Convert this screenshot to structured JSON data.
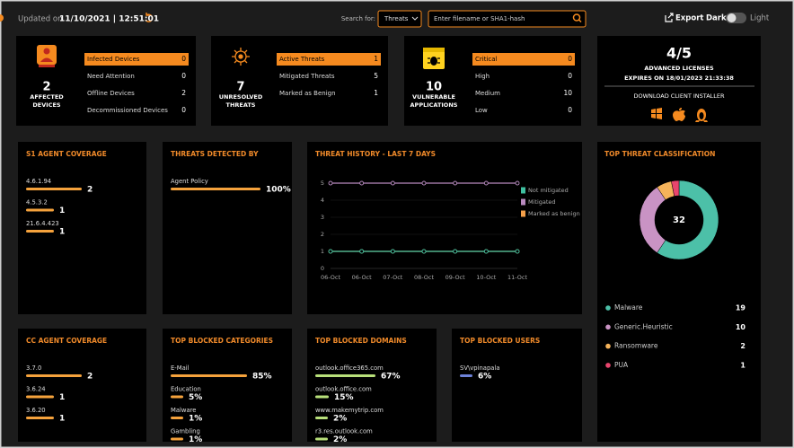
{
  "header": {
    "updated_label": "Updated on",
    "timestamp": "11/10/2021 | 12:51:01",
    "search_label": "Search for:",
    "search_type": "Threats",
    "search_placeholder": "Enter filename or SHA1-hash",
    "export": "Export",
    "dark": "Dark",
    "light": "Light"
  },
  "summary": [
    {
      "count": 2,
      "label": "AFFECTED DEVICES",
      "items": [
        {
          "name": "Infected Devices",
          "value": 0
        },
        {
          "name": "Need Attention",
          "value": 0
        },
        {
          "name": "Offline Devices",
          "value": 2
        },
        {
          "name": "Decommissioned Devices",
          "value": 0
        }
      ]
    },
    {
      "count": 7,
      "label": "UNRESOLVED THREATS",
      "items": [
        {
          "name": "Active Threats",
          "value": 1
        },
        {
          "name": "Mitigated Threats",
          "value": 5
        },
        {
          "name": "Marked as Benign",
          "value": 1
        }
      ]
    },
    {
      "count": 10,
      "label": "VULNERABLE APPLICATIONS",
      "items": [
        {
          "name": "Critical",
          "value": 0
        },
        {
          "name": "High",
          "value": 0
        },
        {
          "name": "Medium",
          "value": 10
        },
        {
          "name": "Low",
          "value": 0
        }
      ]
    }
  ],
  "license": {
    "count": "4/5",
    "title": "ADVANCED LICENSES",
    "expires": "EXPIRES ON 18/01/2023 21:33:38",
    "download": "DOWNLOAD CLIENT INSTALLER"
  },
  "s1_agent_coverage": {
    "title": "S1 AGENT COVERAGE",
    "items": [
      {
        "name": "4.6.1.94",
        "value": 2
      },
      {
        "name": "4.5.3.2",
        "value": 1
      },
      {
        "name": "21.6.4.423",
        "value": 1
      }
    ]
  },
  "threats_detected_by": {
    "title": "THREATS DETECTED BY",
    "items": [
      {
        "name": "Agent Policy",
        "value": 100,
        "label": "100%"
      }
    ]
  },
  "threat_history": {
    "title": "THREAT HISTORY - LAST 7 DAYS",
    "categories": [
      "06-Oct",
      "06-Oct",
      "07-Oct",
      "08-Oct",
      "09-Oct",
      "10-Oct",
      "11-Oct"
    ],
    "ylim": [
      0,
      5
    ],
    "yticks": [
      0,
      1,
      2,
      3,
      4,
      5
    ],
    "series": [
      {
        "name": "Not mitigated",
        "color": "#3fbfa0",
        "values": [
          1,
          1,
          1,
          1,
          1,
          1,
          1
        ]
      },
      {
        "name": "Mitigated",
        "color": "#b98bc0",
        "values": [
          5,
          5,
          5,
          5,
          5,
          5,
          5
        ]
      },
      {
        "name": "Marked as benign",
        "color": "#f5a04a",
        "values": [
          1,
          1,
          1,
          1,
          1,
          1,
          1
        ]
      }
    ]
  },
  "top_threat_classification": {
    "title": "TOP THREAT CLASSIFICATION",
    "total": 32,
    "items": [
      {
        "name": "Malware",
        "value": 19,
        "color": "#4cc0a8"
      },
      {
        "name": "Generic.Heuristic",
        "value": 10,
        "color": "#c993c4"
      },
      {
        "name": "Ransomware",
        "value": 2,
        "color": "#f5b35a"
      },
      {
        "name": "PUA",
        "value": 1,
        "color": "#e8456d"
      }
    ]
  },
  "cc_agent_coverage": {
    "title": "CC AGENT COVERAGE",
    "items": [
      {
        "name": "3.7.0",
        "value": 2
      },
      {
        "name": "3.6.24",
        "value": 1
      },
      {
        "name": "3.6.20",
        "value": 1
      }
    ]
  },
  "top_blocked_categories": {
    "title": "TOP BLOCKED CATEGORIES",
    "items": [
      {
        "name": "E-Mail",
        "value": 85,
        "label": "85%"
      },
      {
        "name": "Education",
        "value": 5,
        "label": "5%"
      },
      {
        "name": "Malware",
        "value": 1,
        "label": "1%"
      },
      {
        "name": "Gambling",
        "value": 1,
        "label": "1%"
      }
    ]
  },
  "top_blocked_domains": {
    "title": "TOP BLOCKED DOMAINS",
    "items": [
      {
        "name": "outlook.office365.com",
        "value": 67,
        "label": "67%"
      },
      {
        "name": "outlook.office.com",
        "value": 15,
        "label": "15%"
      },
      {
        "name": "www.makemytrip.com",
        "value": 2,
        "label": "2%"
      },
      {
        "name": "r3.res.outlook.com",
        "value": 2,
        "label": "2%"
      }
    ]
  },
  "top_blocked_users": {
    "title": "TOP BLOCKED USERS",
    "items": [
      {
        "name": "SV\\vpinapala",
        "value": 6,
        "label": "6%"
      }
    ]
  }
}
